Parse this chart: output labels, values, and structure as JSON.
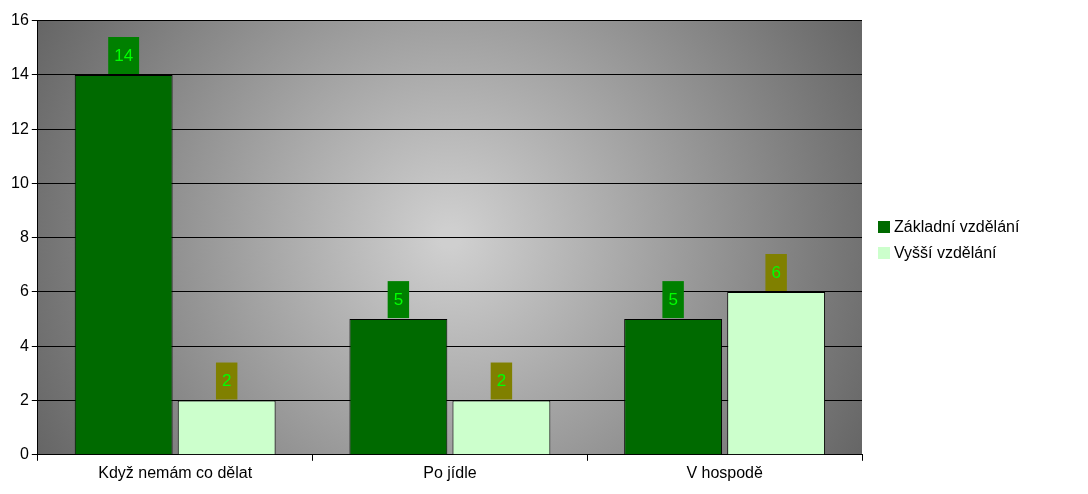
{
  "chart_data": {
    "type": "bar",
    "categories": [
      "Když nemám co dělat",
      "Po jídle",
      "V hospodě"
    ],
    "series": [
      {
        "name": "Základní vzdělání",
        "color": "#006a00",
        "values": [
          14,
          5,
          5
        ]
      },
      {
        "name": "Vyšší vzdělání",
        "color": "#ccffcc",
        "values": [
          2,
          2,
          6
        ]
      }
    ],
    "ylim": [
      0,
      16
    ],
    "yticks": [
      0,
      2,
      4,
      6,
      8,
      10,
      12,
      14,
      16
    ],
    "grid": "y",
    "legend": "right",
    "data_labels": true
  }
}
